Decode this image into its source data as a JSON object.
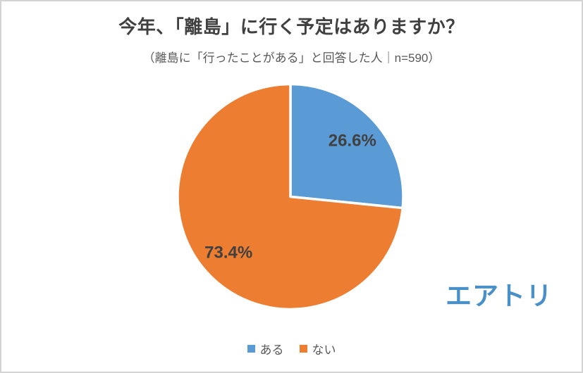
{
  "chart_data": {
    "type": "pie",
    "title": "今年、「離島」に行く予定はありますか？",
    "subtitle": "（離島に「行ったことがある」と回答した人｜n=590）",
    "categories": [
      "ある",
      "ない"
    ],
    "values": [
      26.6,
      73.4
    ],
    "data_labels": [
      "26.6%",
      "73.4%"
    ],
    "colors": [
      "#5B9BD5",
      "#ED7D31"
    ],
    "label_color": "#404040",
    "start_angle_deg": 0,
    "direction": "clockwise",
    "legend_position": "bottom",
    "grid": false
  },
  "logo": {
    "text": "エアトリ",
    "color": "#4A90C8"
  }
}
